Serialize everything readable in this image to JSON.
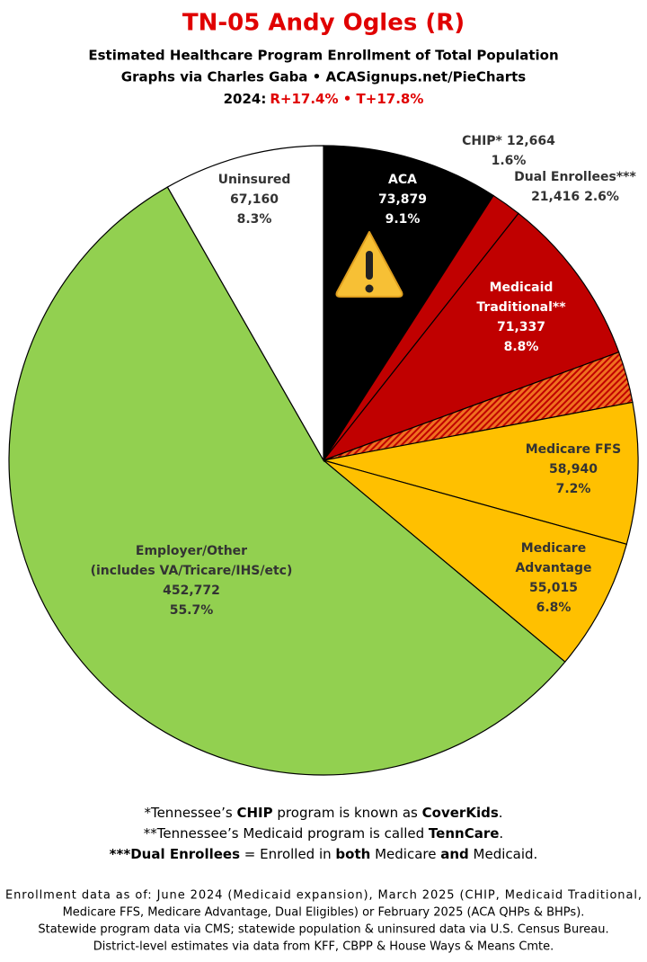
{
  "chart_data": {
    "type": "pie",
    "title": "TN-05 Andy Ogles (R)",
    "subtitle": [
      "Estimated Healthcare Program Enrollment of Total Population",
      "Graphs via Charles Gaba  •  ACASignups.net/PieCharts"
    ],
    "year_label": "2024:",
    "margins": "R+17.4% • T+17.8%",
    "categories": [
      "ACA",
      "CHIP*",
      "Medicaid\nTraditional**",
      "Dual Enrollees***",
      "Medicare FFS",
      "Medicare\nAdvantage",
      "Employer/Other\n(includes VA/Tricare/IHS/etc)",
      "Uninsured"
    ],
    "values": [
      73879,
      12664,
      71337,
      21416,
      58940,
      55015,
      452772,
      67160
    ],
    "value_labels": [
      "73,879",
      "12,664",
      "71,337",
      "21,416",
      "58,940",
      "55,015",
      "452,772",
      "67,160"
    ],
    "percent_labels": [
      "9.1%",
      "1.6%",
      "8.8%",
      "2.6%",
      "7.2%",
      "6.8%",
      "55.7%",
      "8.3%"
    ],
    "colors": [
      "#000000",
      "#c00000",
      "#c00000",
      "hatch",
      "#ffc000",
      "#ffc000",
      "#92d050",
      "#ffffff"
    ],
    "footnotes": [
      [
        {
          "text": "*Tennessee’s ",
          "bold": false
        },
        {
          "text": "CHIP",
          "bold": true
        },
        {
          "text": " program is known as ",
          "bold": false
        },
        {
          "text": "CoverKids",
          "bold": true
        },
        {
          "text": ".",
          "bold": false
        }
      ],
      [
        {
          "text": "**Tennessee’s Medicaid program is called ",
          "bold": false
        },
        {
          "text": "TennCare",
          "bold": true
        },
        {
          "text": ".",
          "bold": false
        }
      ],
      [
        {
          "text": "***Dual Enrollees",
          "bold": true
        },
        {
          "text": " = Enrolled in ",
          "bold": false
        },
        {
          "text": "both",
          "bold": true
        },
        {
          "text": " Medicare ",
          "bold": false
        },
        {
          "text": "and",
          "bold": true
        },
        {
          "text": " Medicaid.",
          "bold": false
        }
      ]
    ],
    "source_notes": [
      "Enrollment data as of: June 2024 (Medicaid expansion), March 2025 (CHIP, Medicaid Traditional,",
      "Medicare FFS, Medicare Advantage, Dual Eligibles) or February 2025 (ACA QHPs & BHPs).",
      "Statewide program data via CMS; statewide population & uninsured data via U.S. Census Bureau.",
      "District-level estimates via data from KFF, CBPP & House Ways & Means Cmte."
    ]
  }
}
